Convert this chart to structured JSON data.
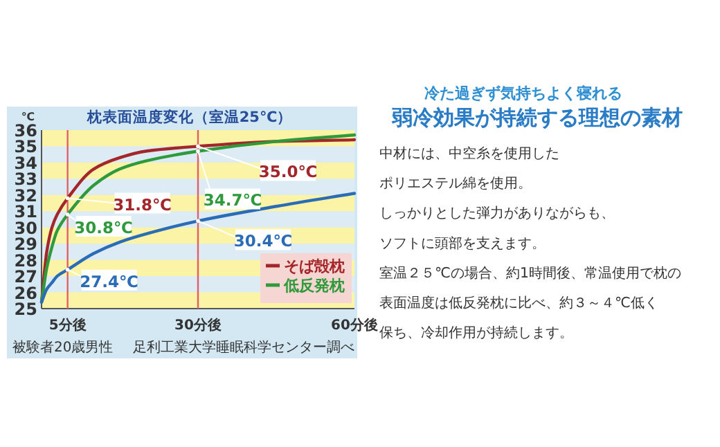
{
  "chart_data": {
    "type": "line",
    "title": "枕表面温度変化（室温25℃）",
    "ylabel": "℃",
    "xlim": [
      0,
      60
    ],
    "xticks": [
      {
        "value": 5,
        "label": "5分後"
      },
      {
        "value": 30,
        "label": "30分後"
      },
      {
        "value": 60,
        "label": "60分後"
      }
    ],
    "ylim": [
      25,
      36
    ],
    "yticks": [
      25,
      26,
      27,
      28,
      29,
      30,
      31,
      32,
      33,
      34,
      35,
      36
    ],
    "legend": "bottom right",
    "marker": "none",
    "line_style": "solid",
    "x": [
      0,
      1,
      2,
      3,
      5,
      10,
      15,
      20,
      30,
      45,
      60
    ],
    "series": [
      {
        "name": "そば殻枕",
        "color": "#a3262a",
        "values": [
          25.4,
          28.5,
          30.0,
          30.8,
          31.8,
          33.6,
          34.3,
          34.7,
          35.0,
          35.3,
          35.4
        ],
        "value_labels": [
          null,
          null,
          null,
          null,
          "31.8℃",
          null,
          null,
          null,
          "35.0℃",
          null,
          null
        ]
      },
      {
        "name": "低反発枕",
        "color": "#2f9a3c",
        "values": [
          25.4,
          27.5,
          28.8,
          29.8,
          30.8,
          32.6,
          33.6,
          34.1,
          34.7,
          35.3,
          35.7
        ],
        "value_labels": [
          null,
          null,
          null,
          null,
          "30.8℃",
          null,
          null,
          null,
          "34.7℃",
          null,
          null
        ]
      },
      {
        "color": "#2b6cb6",
        "values": [
          25.4,
          26.2,
          26.6,
          27.0,
          27.4,
          28.4,
          29.1,
          29.6,
          30.4,
          31.3,
          32.1
        ],
        "value_labels": [
          null,
          null,
          null,
          null,
          "27.4℃",
          null,
          null,
          null,
          "30.4℃",
          null,
          null
        ]
      }
    ],
    "bands": [
      {
        "axis": "y",
        "from": 25,
        "to": 26,
        "color": "#fbf3a6"
      },
      {
        "axis": "y",
        "from": 27,
        "to": 28,
        "color": "#fbf3a6"
      },
      {
        "axis": "y",
        "from": 29,
        "to": 30,
        "color": "#fbf3a6"
      },
      {
        "axis": "y",
        "from": 31,
        "to": 32,
        "color": "#fbf3a6"
      },
      {
        "axis": "y",
        "from": 33,
        "to": 34,
        "color": "#fbf3a6"
      },
      {
        "axis": "y",
        "from": 35,
        "to": 36,
        "color": "#fbf3a6"
      }
    ],
    "ref_lines": [
      {
        "axis": "x",
        "value": 5,
        "color": "#e0606a"
      },
      {
        "axis": "x",
        "value": 30,
        "color": "#e0606a"
      }
    ],
    "annotations": [
      "被験者20歳男性",
      "足利工業大学睡眠科学センター調べ",
      "冷た過ぎず気持ちよく寝れる",
      "弱冷効果が持続する理想の素材",
      "中材には、中空糸を使用した",
      "ポリエステル綿を使用。",
      "しっかりとした弾力がありながらも、",
      "ソフトに頭部を支えます。",
      "室温２５℃の場合、約1時間後、常温使用で枕の",
      "表面温度は低反発枕に比べ、約３～４℃低く",
      "保ち、冷却作用が持続します。"
    ]
  }
}
